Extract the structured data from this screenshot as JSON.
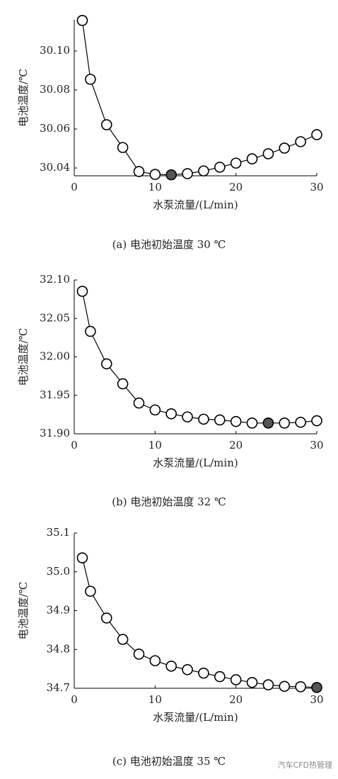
{
  "chart_data": [
    {
      "type": "line",
      "caption": "(a)  电池初始温度 30 ℃",
      "xlabel": "水泵流量/(L/min)",
      "ylabel": "电池温度/℃",
      "x": [
        1,
        2,
        4,
        6,
        8,
        10,
        12,
        14,
        16,
        18,
        20,
        22,
        24,
        26,
        28,
        30
      ],
      "series": [
        {
          "color": "#000000",
          "highlight_index": 6,
          "highlight_color": "#555555",
          "values": [
            30.1157,
            30.0855,
            30.0622,
            30.0505,
            30.0382,
            30.0367,
            30.0365,
            30.0371,
            30.0385,
            30.0404,
            30.0425,
            30.0447,
            30.0473,
            30.0502,
            30.0535,
            30.0571
          ]
        }
      ],
      "xlim": [
        0,
        30
      ],
      "xticks": [
        0,
        10,
        20,
        30
      ],
      "ylim": [
        30.036,
        30.116
      ],
      "yticks": [
        30.04,
        30.06,
        30.08,
        {
          "value": 30.1,
          "label": "30.10"
        }
      ]
    },
    {
      "type": "line",
      "caption": "(b)  电池初始温度 32 ℃",
      "xlabel": "水泵流量/(L/min)",
      "ylabel": "电池温度/℃",
      "x": [
        1,
        2,
        4,
        6,
        8,
        10,
        12,
        14,
        16,
        18,
        20,
        22,
        24,
        26,
        28,
        30
      ],
      "series": [
        {
          "color": "#000000",
          "highlight_index": 12,
          "highlight_color": "#555555",
          "values": [
            32.0853,
            32.0332,
            31.991,
            31.965,
            31.94,
            31.931,
            31.926,
            31.922,
            31.919,
            31.918,
            31.916,
            31.914,
            31.914,
            31.914,
            31.915,
            31.917
          ]
        }
      ],
      "xlim": [
        0,
        30
      ],
      "xticks": [
        0,
        10,
        20,
        30
      ],
      "ylim": [
        31.9,
        32.1
      ],
      "yticks": [
        {
          "value": 31.9,
          "label": "31.90"
        },
        31.95,
        {
          "value": 32,
          "label": "32.00"
        },
        32.05,
        {
          "value": 32.1,
          "label": "32.10"
        }
      ]
    },
    {
      "type": "line",
      "caption": "(c)  电池初始温度 35 ℃",
      "xlabel": "水泵流量/(L/min)",
      "ylabel": "电池温度/℃",
      "x": [
        1,
        2,
        4,
        6,
        8,
        10,
        12,
        14,
        16,
        18,
        20,
        22,
        24,
        26,
        28,
        30
      ],
      "series": [
        {
          "color": "#000000",
          "highlight_index": 15,
          "highlight_color": "#555555",
          "values": [
            35.036,
            34.95,
            34.881,
            34.826,
            34.788,
            34.771,
            34.757,
            34.748,
            34.739,
            34.73,
            34.722,
            34.715,
            34.709,
            34.705,
            34.704,
            34.702
          ]
        }
      ],
      "xlim": [
        0,
        30
      ],
      "xticks": [
        0,
        10,
        20,
        30
      ],
      "ylim": [
        34.7,
        35.1
      ],
      "yticks": [
        34.7,
        34.8,
        34.9,
        {
          "value": 35,
          "label": "35.0"
        },
        35.1
      ]
    }
  ],
  "watermark": "汽车CFD热管理"
}
